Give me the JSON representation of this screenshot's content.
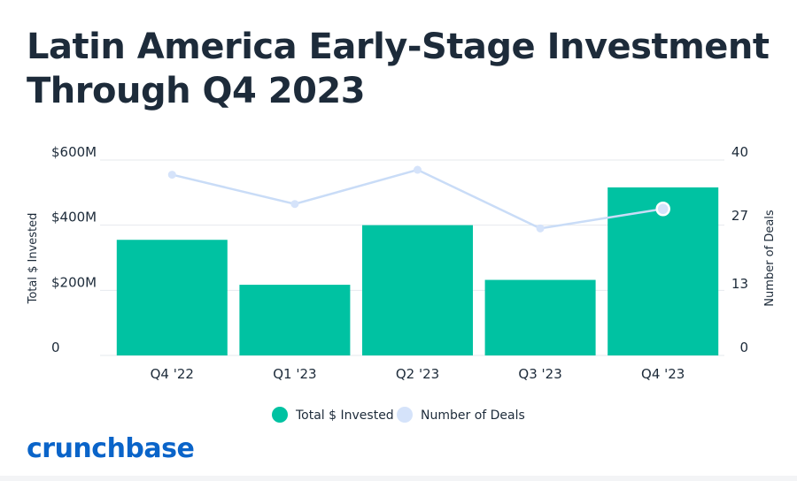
{
  "title": "Latin America Early-Stage Investment Through Q4 2023",
  "brand": "crunchbase",
  "colors": {
    "bar": "#00c2a2",
    "line": "#c9dcf7",
    "line_point": "#d5e3fa",
    "highlight_point_stroke": "#ffffff",
    "text": "#1d2b3a",
    "grid": "#e6e9ee",
    "brand": "#0a64c9"
  },
  "chart_data": {
    "type": "bar",
    "categories": [
      "Q4 '22",
      "Q1 '23",
      "Q2 '23",
      "Q3 '23",
      "Q4 '23"
    ],
    "series": [
      {
        "name": "Total $ Invested",
        "type": "bar",
        "axis": "left",
        "values": [
          355,
          217,
          400,
          232,
          516
        ]
      },
      {
        "name": "Number of Deals",
        "type": "line",
        "axis": "right",
        "values": [
          37,
          31,
          38,
          26,
          30
        ]
      }
    ],
    "ylabel": "Total $ Invested",
    "y2label": "Number of Deals",
    "ylim": [
      0,
      600
    ],
    "y2lim": [
      0,
      40
    ],
    "yticks": [
      {
        "value": 0,
        "label": "0"
      },
      {
        "value": 200,
        "label": "$200M"
      },
      {
        "value": 400,
        "label": "$400M"
      },
      {
        "value": 600,
        "label": "$600M"
      }
    ],
    "y2ticks": [
      {
        "value": 0,
        "label": "0"
      },
      {
        "value": 13,
        "label": "13"
      },
      {
        "value": 27,
        "label": "27"
      },
      {
        "value": 40,
        "label": "40"
      }
    ],
    "grid": true,
    "legend": "bottom-center",
    "highlight_point": "Q4 '23"
  }
}
